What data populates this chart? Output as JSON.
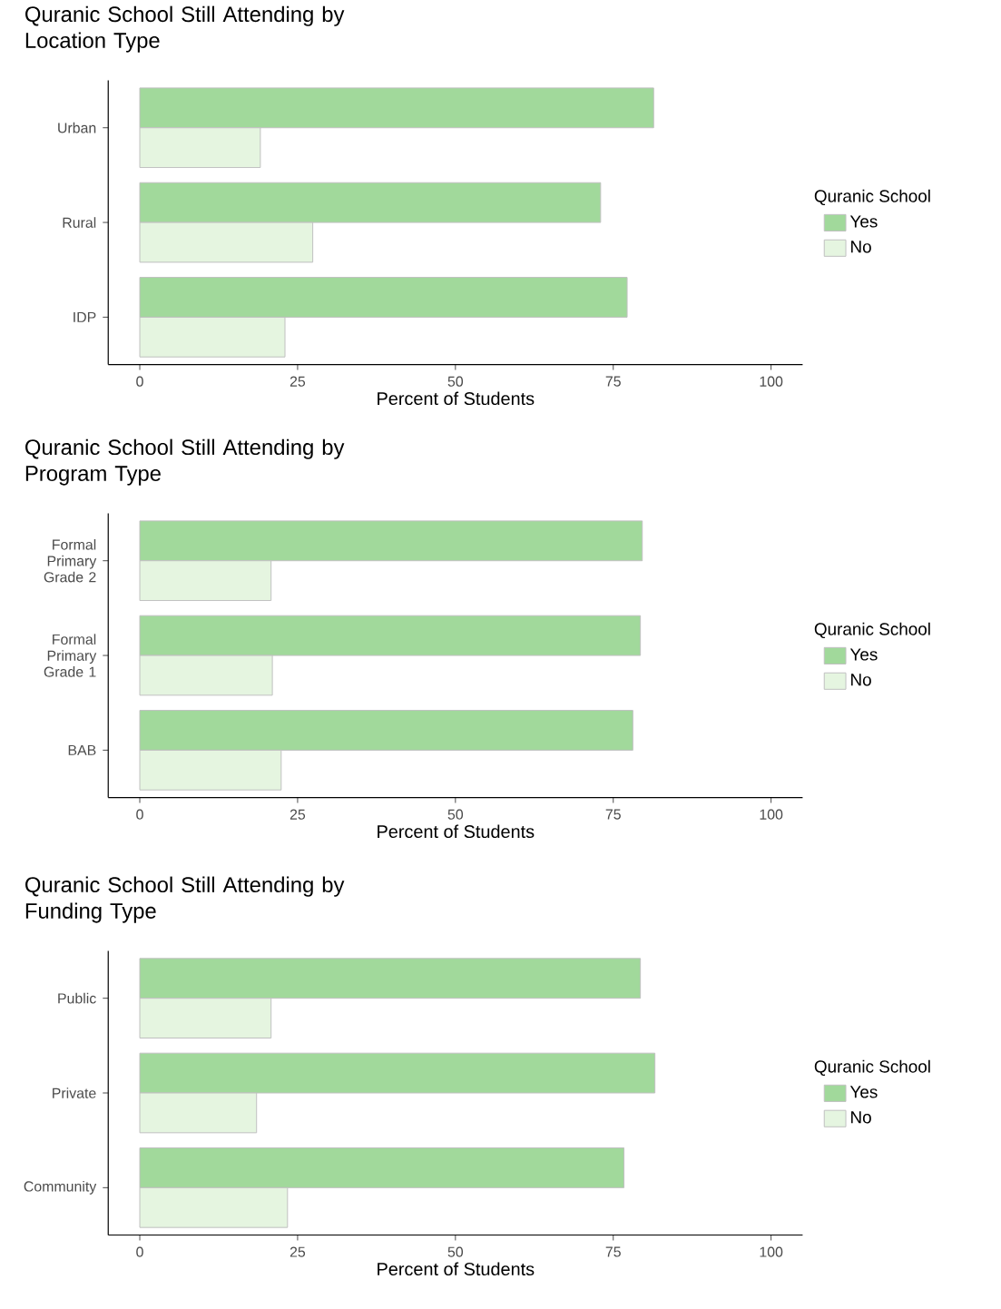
{
  "chart_data": [
    {
      "type": "bar",
      "orientation": "horizontal",
      "title": "Quranic School Still Attending by Location Type",
      "xlabel": "Percent of Students",
      "legend_title": "Quranic School",
      "legend": "right",
      "categories": [
        "Urban",
        "Rural",
        "IDP"
      ],
      "xlim": [
        -5,
        105
      ],
      "xticks": [
        0,
        25,
        50,
        75,
        100
      ],
      "series": [
        {
          "name": "Yes",
          "color": "#a1d99b",
          "values": [
            81.4,
            73.0,
            77.2
          ]
        },
        {
          "name": "No",
          "color": "#e5f5e0",
          "values": [
            19.1,
            27.4,
            23.0
          ]
        }
      ]
    },
    {
      "type": "bar",
      "orientation": "horizontal",
      "title": "Quranic School Still Attending by Program Type",
      "xlabel": "Percent of Students",
      "legend_title": "Quranic School",
      "legend": "right",
      "categories": [
        "Formal Primary Grade 2",
        "Formal Primary Grade 1",
        "BAB"
      ],
      "xlim": [
        -5,
        105
      ],
      "xticks": [
        0,
        25,
        50,
        75,
        100
      ],
      "series": [
        {
          "name": "Yes",
          "color": "#a1d99b",
          "values": [
            79.6,
            79.3,
            78.1
          ]
        },
        {
          "name": "No",
          "color": "#e5f5e0",
          "values": [
            20.8,
            21.0,
            22.4
          ]
        }
      ]
    },
    {
      "type": "bar",
      "orientation": "horizontal",
      "title": "Quranic School Still Attending by Funding Type",
      "xlabel": "Percent of Students",
      "legend_title": "Quranic School",
      "legend": "right",
      "categories": [
        "Public",
        "Private",
        "Community"
      ],
      "xlim": [
        -5,
        105
      ],
      "xticks": [
        0,
        25,
        50,
        75,
        100
      ],
      "series": [
        {
          "name": "Yes",
          "color": "#a1d99b",
          "values": [
            79.3,
            81.6,
            76.7
          ]
        },
        {
          "name": "No",
          "color": "#e5f5e0",
          "values": [
            20.8,
            18.5,
            23.4
          ]
        }
      ]
    }
  ]
}
